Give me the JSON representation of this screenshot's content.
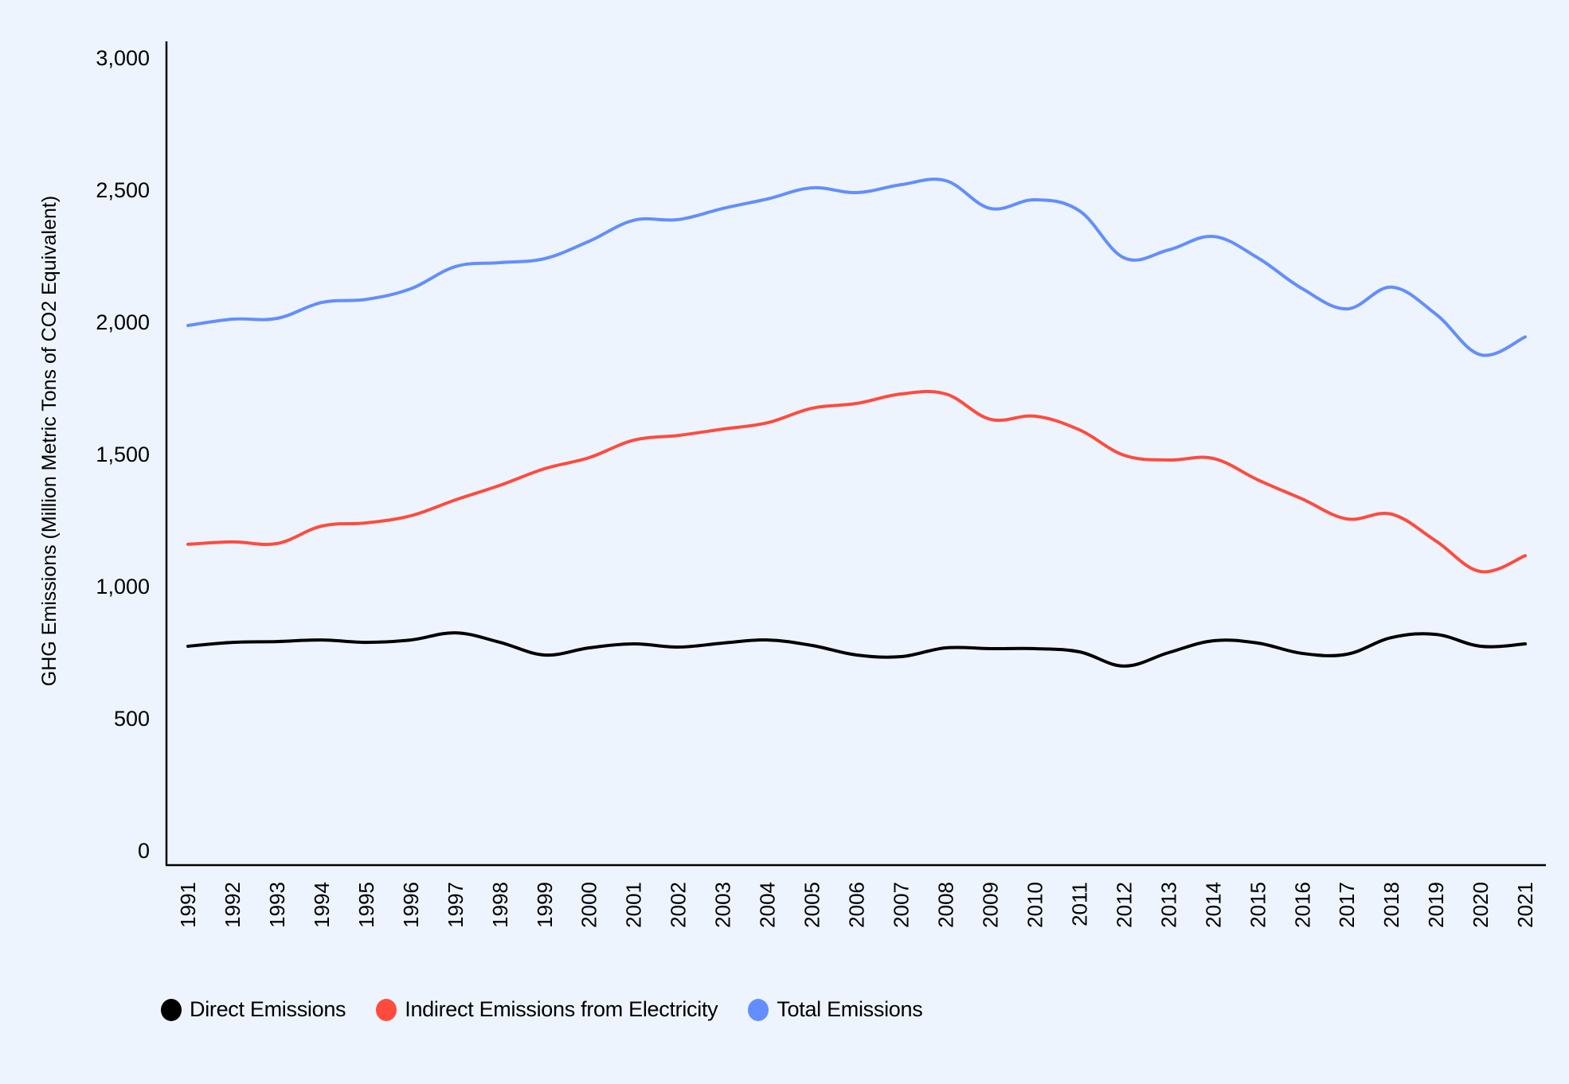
{
  "chart_data": {
    "type": "line",
    "title": "",
    "xlabel": "",
    "ylabel": "GHG Emissions (Million Metric Tons of CO2 Equivalent)",
    "ylim": [
      0,
      3000
    ],
    "yticks": [
      0,
      500,
      1000,
      1500,
      2000,
      2500,
      3000
    ],
    "ytick_labels": [
      "0",
      "500",
      "1,000",
      "1,500",
      "2,000",
      "2,500",
      "3,000"
    ],
    "grid": false,
    "legend_position": "bottom-left",
    "x": [
      1991,
      1992,
      1993,
      1994,
      1995,
      1996,
      1997,
      1998,
      1999,
      2000,
      2001,
      2002,
      2003,
      2004,
      2005,
      2006,
      2007,
      2008,
      2009,
      2010,
      2011,
      2012,
      2013,
      2014,
      2015,
      2016,
      2017,
      2018,
      2019,
      2020,
      2021
    ],
    "xtick_labels": [
      "1991",
      "1992",
      "1993",
      "1994",
      "1995",
      "1996",
      "1997",
      "1998",
      "1999",
      "2000",
      "2001",
      "2002",
      "2003",
      "2004",
      "2005",
      "2006",
      "2007",
      "2008",
      "2009",
      "2010",
      "2011",
      "2012",
      "2013",
      "2014",
      "2015",
      "2016",
      "2017",
      "2018",
      "2019",
      "2020",
      "2021"
    ],
    "series": [
      {
        "name": "Direct Emissions",
        "color": "#000000",
        "values": [
          774,
          789,
          792,
          798,
          789,
          798,
          825,
          789,
          741,
          768,
          783,
          771,
          786,
          798,
          777,
          741,
          735,
          768,
          765,
          765,
          753,
          699,
          750,
          795,
          786,
          747,
          744,
          807,
          819,
          774,
          783
        ]
      },
      {
        "name": "Indirect Emissions from Electricity",
        "color": "#FF4B3E",
        "values": [
          1160,
          1169,
          1163,
          1229,
          1241,
          1268,
          1328,
          1383,
          1446,
          1488,
          1554,
          1572,
          1596,
          1620,
          1675,
          1693,
          1729,
          1729,
          1633,
          1645,
          1593,
          1497,
          1479,
          1485,
          1404,
          1331,
          1256,
          1274,
          1172,
          1057,
          1117
        ]
      },
      {
        "name": "Total Emissions",
        "color": "#628EFF",
        "values": [
          1988,
          2012,
          2015,
          2075,
          2087,
          2127,
          2211,
          2226,
          2241,
          2307,
          2386,
          2389,
          2431,
          2467,
          2509,
          2491,
          2521,
          2536,
          2431,
          2464,
          2422,
          2244,
          2274,
          2325,
          2244,
          2127,
          2051,
          2133,
          2030,
          1877,
          1945
        ]
      }
    ]
  }
}
